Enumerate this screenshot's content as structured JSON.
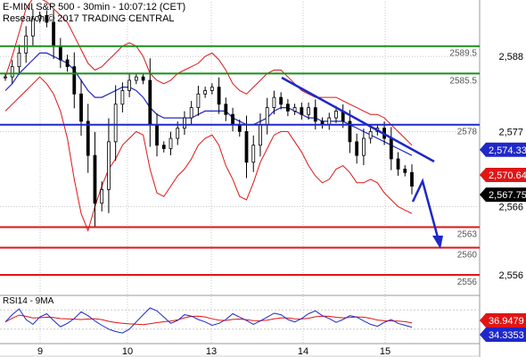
{
  "header": {
    "title": "E-MINI S&P 500 - 30min - 10:07:12 (CET)",
    "source": "Research © 2017 TRADING CENTRAL"
  },
  "chart_data": [
    {
      "type": "line",
      "panel": "price",
      "ylim": [
        2553,
        2596
      ],
      "y_ticks": [
        "2,588",
        "2,577",
        "2,566",
        "2,556"
      ],
      "x_ticks": [
        "9",
        "10",
        "13",
        "14",
        "15"
      ],
      "levels": [
        {
          "label": "2589.5",
          "value": 2589.5,
          "color": "#1b8f1b"
        },
        {
          "label": "2585.5",
          "value": 2585.5,
          "color": "#1b8f1b"
        },
        {
          "label": "2578",
          "value": 2578,
          "color": "#1f28c8"
        },
        {
          "label": "2563",
          "value": 2563,
          "color": "#e01515"
        },
        {
          "label": "2560",
          "value": 2560,
          "color": "#e01515"
        },
        {
          "label": "2556",
          "value": 2556,
          "color": "#e01515"
        }
      ],
      "price_tags": [
        {
          "label": "2,574.33",
          "value": 2574.33,
          "bg": "#1f28c8",
          "fg": "#ffffff"
        },
        {
          "label": "2,570.64",
          "value": 2570.64,
          "bg": "#e01515",
          "fg": "#ffffff"
        },
        {
          "label": "2,567.75",
          "value": 2567.75,
          "bg": "#000000",
          "fg": "#ffffff"
        }
      ],
      "price": [
        2585,
        2586.5,
        2588.5,
        2591,
        2593.5,
        2594,
        2593,
        2589.5,
        2587.5,
        2586.5,
        2582.5,
        2578.5,
        2573.5,
        2566.5,
        2568.5,
        2575.5,
        2581,
        2583,
        2584.5,
        2585,
        2584.5,
        2578,
        2575,
        2574.5,
        2576,
        2577.5,
        2579,
        2580.5,
        2582.5,
        2583,
        2583.5,
        2581,
        2579.5,
        2578,
        2577,
        2572.5,
        2575,
        2578,
        2580.5,
        2582,
        2581,
        2580,
        2580.5,
        2579.5,
        2580.5,
        2578.5,
        2578,
        2579,
        2580,
        2578.5,
        2575.5,
        2573.5,
        2576,
        2577,
        2577.5,
        2576,
        2573,
        2571.5,
        2571,
        2569
      ],
      "upper_band": [
        2585,
        2588,
        2591.5,
        2595,
        2596.5,
        2596.5,
        2596,
        2595,
        2594,
        2593,
        2591,
        2589,
        2587,
        2586,
        2586.5,
        2587.5,
        2588.5,
        2589.5,
        2590,
        2589.5,
        2588,
        2585.5,
        2584.5,
        2584,
        2584.5,
        2585.5,
        2586,
        2586.5,
        2587,
        2588,
        2588.5,
        2587.5,
        2586,
        2584,
        2583,
        2582.5,
        2583.5,
        2584.5,
        2585.5,
        2586,
        2586,
        2585,
        2584,
        2583,
        2582.5,
        2582,
        2582,
        2582,
        2582,
        2581.5,
        2581,
        2580.5,
        2580,
        2579.5,
        2579.5,
        2579,
        2578,
        2577,
        2576,
        2575
      ],
      "lower_band": [
        2580,
        2581,
        2582,
        2583,
        2584,
        2585,
        2584,
        2582.5,
        2580,
        2576,
        2570,
        2565,
        2562.5,
        2566,
        2569,
        2571.5,
        2573,
        2575,
        2576,
        2577,
        2576.5,
        2571.5,
        2568,
        2567.5,
        2569,
        2570.5,
        2571.5,
        2573,
        2575,
        2576,
        2576.5,
        2575,
        2572,
        2570,
        2567.5,
        2567,
        2569.5,
        2572.5,
        2574.5,
        2576.5,
        2577,
        2577,
        2575.5,
        2574,
        2572,
        2570.5,
        2569.5,
        2570,
        2571.5,
        2572,
        2571,
        2569.5,
        2569.5,
        2570,
        2569.5,
        2568,
        2567,
        2566,
        2565.5,
        2565
      ],
      "moving_average": [
        2583,
        2584,
        2585.5,
        2586.5,
        2587.5,
        2588.5,
        2588.5,
        2588,
        2587.5,
        2587,
        2586,
        2584.5,
        2583,
        2582,
        2582,
        2582.5,
        2583,
        2583.5,
        2583.5,
        2583,
        2582,
        2580.5,
        2579.5,
        2579,
        2579,
        2579,
        2579,
        2579,
        2579.5,
        2580,
        2580,
        2580,
        2580,
        2579,
        2578.5,
        2578,
        2578,
        2578.5,
        2579,
        2580,
        2580.5,
        2580.5,
        2580,
        2579.5,
        2579,
        2579,
        2578.5,
        2578.5,
        2578.5,
        2578.5,
        2578,
        2577.5,
        2577,
        2576.5,
        2576,
        2575.5,
        2575,
        2574.5,
        2574,
        2573.5
      ]
    },
    {
      "type": "line",
      "panel": "indicator",
      "title": "RSI14 - 9MA",
      "value_tags": [
        {
          "label": "36.9479",
          "bg": "#e01515",
          "fg": "#ffffff"
        },
        {
          "label": "34.3353",
          "bg": "#1f28c8",
          "fg": "#ffffff"
        }
      ]
    }
  ],
  "colors": {
    "candles": "#000000",
    "bands": "#e01515",
    "moving_average": "#1f28c8",
    "trendline": "#1f28c8",
    "arrow": "#1f28c8",
    "rsi": "#1f28c8",
    "rsi_ma": "#e01515",
    "grid": "#c8c8c8"
  },
  "icons": {
    "forecast": "down-arrow-icon"
  }
}
